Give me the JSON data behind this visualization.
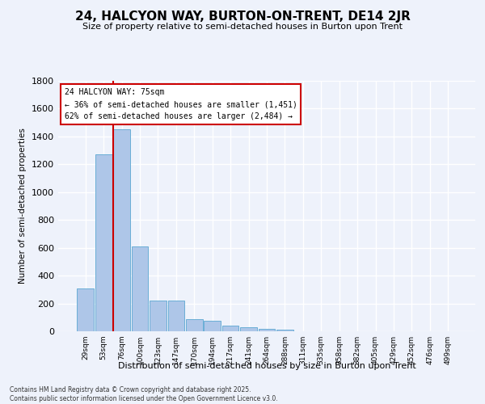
{
  "title": "24, HALCYON WAY, BURTON-ON-TRENT, DE14 2JR",
  "subtitle": "Size of property relative to semi-detached houses in Burton upon Trent",
  "xlabel": "Distribution of semi-detached houses by size in Burton upon Trent",
  "ylabel": "Number of semi-detached properties",
  "categories": [
    "29sqm",
    "53sqm",
    "76sqm",
    "100sqm",
    "123sqm",
    "147sqm",
    "170sqm",
    "194sqm",
    "217sqm",
    "241sqm",
    "264sqm",
    "288sqm",
    "311sqm",
    "335sqm",
    "358sqm",
    "382sqm",
    "405sqm",
    "429sqm",
    "452sqm",
    "476sqm",
    "499sqm"
  ],
  "values": [
    305,
    1270,
    1450,
    610,
    220,
    220,
    85,
    75,
    40,
    30,
    20,
    10,
    0,
    0,
    0,
    0,
    0,
    0,
    0,
    0,
    0
  ],
  "bar_color": "#aec6e8",
  "bar_edge_color": "#6aaed6",
  "highlight_line_index": 2,
  "highlight_color": "#cc0000",
  "annotation_title": "24 HALCYON WAY: 75sqm",
  "annotation_line1": "← 36% of semi-detached houses are smaller (1,451)",
  "annotation_line2": "62% of semi-detached houses are larger (2,484) →",
  "ylim": [
    0,
    1800
  ],
  "yticks": [
    0,
    200,
    400,
    600,
    800,
    1000,
    1200,
    1400,
    1600,
    1800
  ],
  "background_color": "#eef2fb",
  "grid_color": "#ffffff",
  "footer_line1": "Contains HM Land Registry data © Crown copyright and database right 2025.",
  "footer_line2": "Contains public sector information licensed under the Open Government Licence v3.0."
}
